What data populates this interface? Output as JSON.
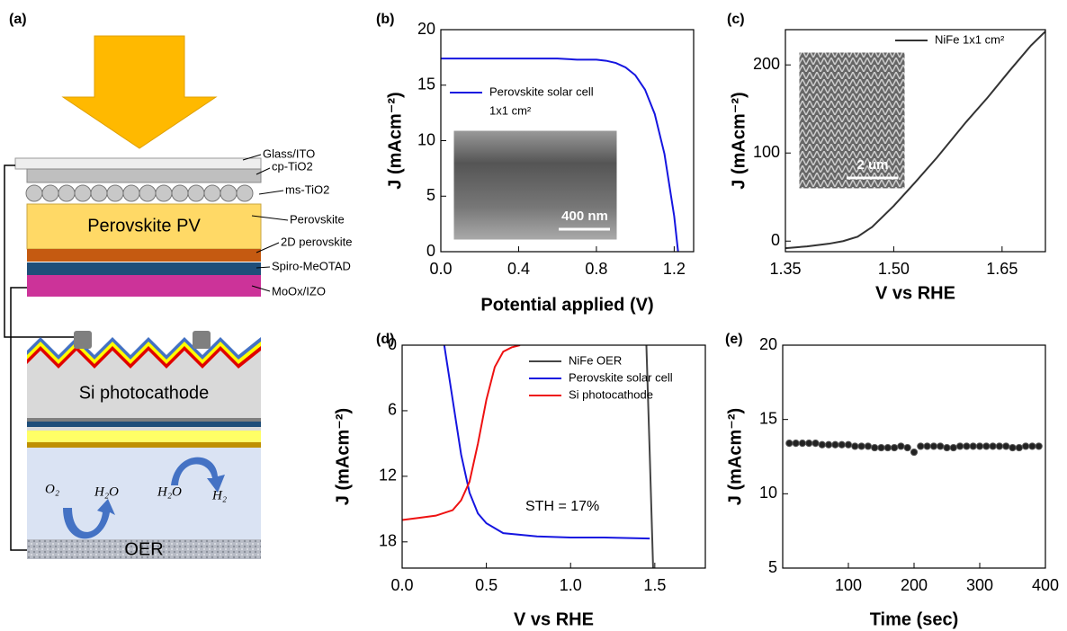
{
  "diagram": {
    "panel_label": "(a)",
    "layers": {
      "glass": "Glass/ITO",
      "cp": "cp-TiO2",
      "ms": "ms-TiO2",
      "perovskite": "Perovskite",
      "twod": "2D perovskite",
      "spiro": "Spiro-MeOTAD",
      "moox": "MoOx/IZO"
    },
    "pv_label": "Perovskite PV",
    "si_label": "Si photocathode",
    "oer_label": "OER",
    "species": [
      "O₂",
      "H₂O",
      "H₂O",
      "H₂"
    ]
  },
  "chart_data": [
    {
      "type": "line",
      "panel": "(b)",
      "xlabel": "Potential applied (V)",
      "ylabel": "J (mAcm⁻²)",
      "xlim": [
        0,
        1.3
      ],
      "xticks": [
        {
          "value": 0,
          "label": "0.0"
        },
        0.4,
        0.8,
        1.2
      ],
      "ylim": [
        0,
        20
      ],
      "yticks": [
        0,
        5,
        10,
        15,
        20
      ],
      "legend_note": "1x1 cm²",
      "inset_scale": "400 nm",
      "series": [
        {
          "name": "Perovskite solar cell",
          "color": "#1515e0",
          "x": [
            0,
            0.1,
            0.2,
            0.3,
            0.4,
            0.5,
            0.6,
            0.7,
            0.8,
            0.85,
            0.9,
            0.95,
            1.0,
            1.05,
            1.1,
            1.15,
            1.2,
            1.22
          ],
          "values": [
            17.4,
            17.4,
            17.4,
            17.4,
            17.4,
            17.4,
            17.4,
            17.3,
            17.3,
            17.2,
            17.0,
            16.6,
            15.9,
            14.6,
            12.4,
            8.8,
            3.2,
            0
          ]
        }
      ]
    },
    {
      "type": "line",
      "panel": "(c)",
      "xlabel": "V vs RHE",
      "ylabel": "J (mAcm⁻²)",
      "xlim": [
        1.35,
        1.71
      ],
      "xticks": [
        1.35,
        {
          "value": 1.5,
          "label": "1.50"
        },
        1.65
      ],
      "ylim": [
        -12,
        240
      ],
      "yticks": [
        0,
        100,
        200
      ],
      "inset_scale": "2 um",
      "series": [
        {
          "name": "NiFe 1x1 cm²",
          "color": "#333333",
          "x": [
            1.35,
            1.38,
            1.41,
            1.43,
            1.45,
            1.47,
            1.5,
            1.53,
            1.56,
            1.6,
            1.63,
            1.66,
            1.69,
            1.71
          ],
          "values": [
            -8,
            -6,
            -3,
            0,
            5,
            16,
            40,
            67,
            95,
            135,
            163,
            193,
            222,
            238
          ]
        }
      ]
    },
    {
      "type": "line",
      "panel": "(d)",
      "xlabel": "V vs RHE",
      "ylabel": "J (mAcm⁻²)",
      "xlim": [
        0,
        1.8
      ],
      "xticks": [
        {
          "value": 0,
          "label": "0.0"
        },
        0.5,
        {
          "value": 1,
          "label": "1.0"
        },
        1.5
      ],
      "ylim": [
        0,
        20.4
      ],
      "y_inverted": true,
      "yticks": [
        0,
        6,
        12,
        18
      ],
      "annotation": "STH = 17%",
      "series": [
        {
          "name": "NiFe OER",
          "color": "#444444",
          "x": [
            1.45,
            1.47,
            1.49
          ],
          "values": [
            0,
            10,
            20.4
          ]
        },
        {
          "name": "Perovskite solar cell",
          "color": "#1515e0",
          "x": [
            0.25,
            0.3,
            0.35,
            0.4,
            0.45,
            0.5,
            0.6,
            0.8,
            1.0,
            1.2,
            1.47
          ],
          "values": [
            0,
            5,
            10,
            13.5,
            15.4,
            16.3,
            17.2,
            17.5,
            17.6,
            17.6,
            17.7
          ]
        },
        {
          "name": "Si photocathode",
          "color": "#ee1111",
          "x": [
            0,
            0.1,
            0.2,
            0.3,
            0.35,
            0.4,
            0.45,
            0.5,
            0.55,
            0.6,
            0.65,
            0.7
          ],
          "values": [
            16.0,
            15.8,
            15.6,
            15.1,
            14.2,
            12.5,
            9.0,
            5.0,
            2.0,
            0.6,
            0.2,
            0
          ]
        }
      ]
    },
    {
      "type": "scatter",
      "panel": "(e)",
      "xlabel": "Time (sec)",
      "ylabel": "J (mAcm⁻²)",
      "xlim": [
        0,
        400
      ],
      "xticks": [
        100,
        200,
        300,
        400
      ],
      "ylim": [
        5,
        20
      ],
      "yticks": [
        5,
        10,
        15,
        20
      ],
      "series": [
        {
          "color": "#222222",
          "x": [
            10,
            20,
            30,
            40,
            50,
            60,
            70,
            80,
            90,
            100,
            110,
            120,
            130,
            140,
            150,
            160,
            170,
            180,
            190,
            200,
            210,
            220,
            230,
            240,
            250,
            260,
            270,
            280,
            290,
            300,
            310,
            320,
            330,
            340,
            350,
            360,
            370,
            380,
            390
          ],
          "values": [
            13.4,
            13.4,
            13.4,
            13.4,
            13.4,
            13.3,
            13.3,
            13.3,
            13.3,
            13.3,
            13.2,
            13.2,
            13.2,
            13.1,
            13.1,
            13.1,
            13.1,
            13.2,
            13.1,
            12.8,
            13.2,
            13.2,
            13.2,
            13.2,
            13.1,
            13.1,
            13.2,
            13.2,
            13.2,
            13.2,
            13.2,
            13.2,
            13.2,
            13.2,
            13.1,
            13.1,
            13.2,
            13.2,
            13.2
          ]
        }
      ]
    }
  ]
}
